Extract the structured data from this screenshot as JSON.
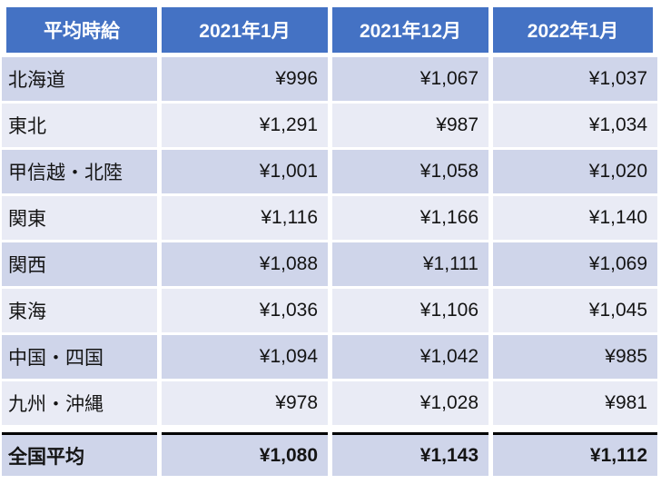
{
  "chart_data": {
    "type": "table",
    "title": "平均時給",
    "legend_position": "none",
    "grid": "banded-rows",
    "columns": [
      "平均時給",
      "2021年1月",
      "2021年12月",
      "2022年1月"
    ],
    "rows": [
      {
        "label": "北海道",
        "cells": [
          "¥996",
          "¥1,067",
          "¥1,037"
        ]
      },
      {
        "label": "東北",
        "cells": [
          "¥1,291",
          "¥987",
          "¥1,034"
        ]
      },
      {
        "label": "甲信越・北陸",
        "cells": [
          "¥1,001",
          "¥1,058",
          "¥1,020"
        ]
      },
      {
        "label": "関東",
        "cells": [
          "¥1,116",
          "¥1,166",
          "¥1,140"
        ]
      },
      {
        "label": "関西",
        "cells": [
          "¥1,088",
          "¥1,111",
          "¥1,069"
        ]
      },
      {
        "label": "東海",
        "cells": [
          "¥1,036",
          "¥1,106",
          "¥1,045"
        ]
      },
      {
        "label": "中国・四国",
        "cells": [
          "¥1,094",
          "¥1,042",
          "¥985"
        ]
      },
      {
        "label": "九州・沖縄",
        "cells": [
          "¥978",
          "¥1,028",
          "¥981"
        ]
      },
      {
        "label": "全国平均",
        "cells": [
          "¥1,080",
          "¥1,143",
          "¥1,112"
        ],
        "emphasis": "bold-total"
      }
    ],
    "colors": {
      "header_bg": "#4472C4",
      "header_text": "#FFFFFF",
      "band_dark": "#CFD5EA",
      "band_light": "#E9EBF5",
      "body_text": "#141414",
      "total_top_border": "#000000",
      "row_separator": "#FFFFFF"
    }
  }
}
